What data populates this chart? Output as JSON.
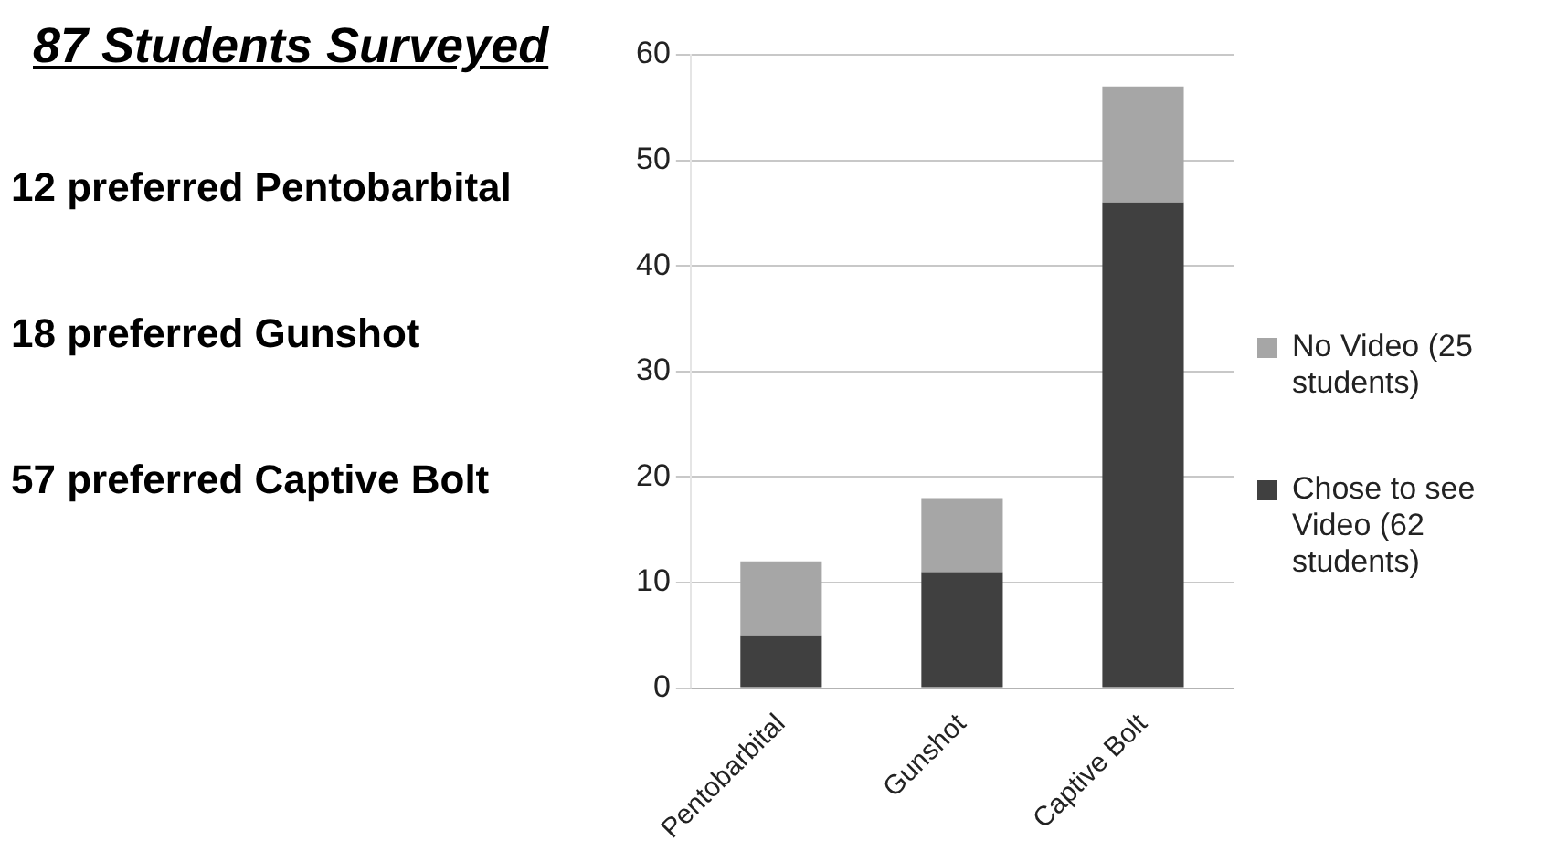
{
  "chart_data": {
    "type": "bar",
    "stacked": true,
    "title": "87 Students Surveyed",
    "annotations": [
      "12 preferred Pentobarbital",
      "18 preferred Gunshot",
      "57 preferred Captive Bolt"
    ],
    "categories": [
      "Pentobarbital",
      "Gunshot",
      "Captive Bolt"
    ],
    "series": [
      {
        "name": "Chose to see Video (62 students)",
        "color": "#404040",
        "values": [
          5,
          11,
          46
        ]
      },
      {
        "name": "No Video (25 students)",
        "color": "#a6a6a6",
        "values": [
          7,
          7,
          11
        ]
      }
    ],
    "ylim": [
      0,
      60
    ],
    "yticks": [
      0,
      10,
      20,
      30,
      40,
      50,
      60
    ],
    "grid": "y",
    "legend": "right"
  }
}
